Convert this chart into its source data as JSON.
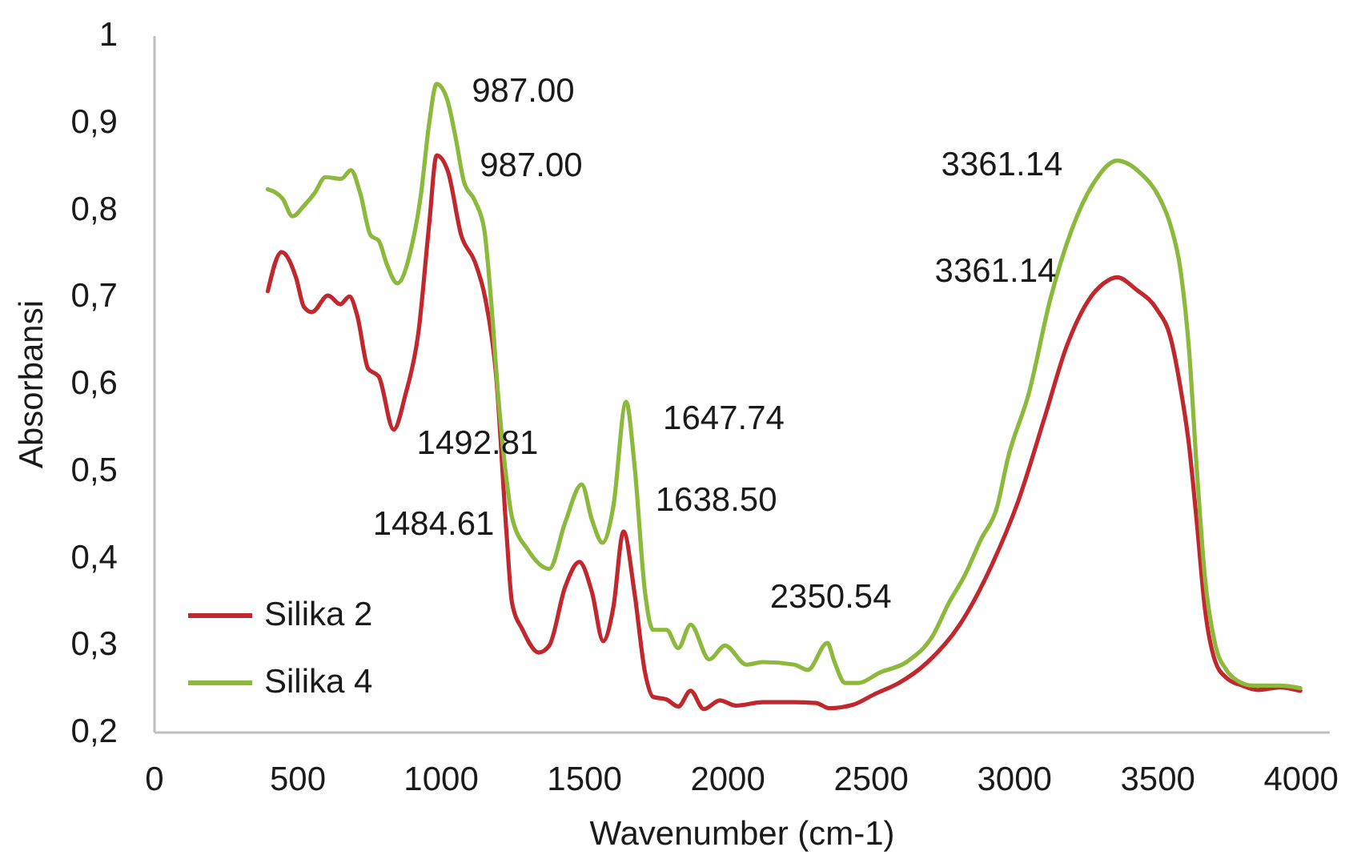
{
  "chart_data": {
    "type": "line",
    "xlabel": "Wavenumber (cm-1)",
    "ylabel": "Absorbansi",
    "xlim": [
      0,
      4100
    ],
    "xticks": [
      0,
      500,
      1000,
      1500,
      2000,
      2500,
      3000,
      3500,
      4000
    ],
    "ylim": [
      0.2,
      1
    ],
    "yticks": [
      {
        "value": 0.2,
        "label": "0,2"
      },
      {
        "value": 0.3,
        "label": "0,3"
      },
      {
        "value": 0.4,
        "label": "0,4"
      },
      {
        "value": 0.5,
        "label": "0,5"
      },
      {
        "value": 0.6,
        "label": "0,6"
      },
      {
        "value": 0.7,
        "label": "0,7"
      },
      {
        "value": 0.8,
        "label": "0,8"
      },
      {
        "value": 0.9,
        "label": "0,9"
      },
      1
    ],
    "grid": false,
    "legend": "bottom left",
    "line_style": "solid",
    "series": [
      {
        "name": "Silika 2",
        "color": "#c0282e",
        "x": [
          398,
          446,
          497,
          524,
          552,
          608,
          651,
          683,
          710,
          748,
          785,
          837,
          878,
          924,
          961,
          987,
          1026,
          1073,
          1120,
          1157,
          1194,
          1231,
          1250,
          1287,
          1343,
          1380,
          1435,
          1485,
          1529,
          1568,
          1603,
          1639,
          1677,
          1714,
          1742,
          1789,
          1830,
          1873,
          1919,
          1975,
          2031,
          2124,
          2235,
          2310,
          2356,
          2440,
          2514,
          2600,
          2700,
          2812,
          2923,
          3016,
          3109,
          3184,
          3258,
          3314,
          3361,
          3427,
          3500,
          3546,
          3583,
          3611,
          3639,
          3667,
          3704,
          3742,
          3797,
          3853,
          3928,
          4000
        ],
        "values": [
          0.706,
          0.751,
          0.721,
          0.688,
          0.682,
          0.701,
          0.691,
          0.7,
          0.678,
          0.617,
          0.608,
          0.547,
          0.587,
          0.66,
          0.783,
          0.862,
          0.844,
          0.77,
          0.74,
          0.697,
          0.611,
          0.427,
          0.348,
          0.317,
          0.291,
          0.299,
          0.366,
          0.395,
          0.36,
          0.304,
          0.342,
          0.43,
          0.36,
          0.268,
          0.24,
          0.237,
          0.229,
          0.247,
          0.226,
          0.236,
          0.23,
          0.234,
          0.234,
          0.233,
          0.227,
          0.231,
          0.243,
          0.256,
          0.28,
          0.323,
          0.391,
          0.465,
          0.562,
          0.642,
          0.694,
          0.715,
          0.722,
          0.708,
          0.685,
          0.654,
          0.593,
          0.531,
          0.44,
          0.342,
          0.28,
          0.262,
          0.253,
          0.248,
          0.251,
          0.247
        ]
      },
      {
        "name": "Silika 4",
        "color": "#8cb83c",
        "x": [
          398,
          450,
          484,
          524,
          562,
          599,
          654,
          688,
          720,
          757,
          785,
          813,
          850,
          896,
          933,
          961,
          987,
          1023,
          1054,
          1082,
          1120,
          1153,
          1175,
          1203,
          1231,
          1250,
          1305,
          1380,
          1435,
          1493,
          1529,
          1566,
          1603,
          1648,
          1677,
          1714,
          1742,
          1789,
          1830,
          1873,
          1938,
          1993,
          2068,
          2124,
          2235,
          2282,
          2350,
          2375,
          2412,
          2459,
          2533,
          2626,
          2719,
          2774,
          2830,
          2886,
          2942,
          2979,
          3054,
          3128,
          3203,
          3277,
          3361,
          3444,
          3509,
          3546,
          3583,
          3611,
          3639,
          3667,
          3704,
          3742,
          3779,
          3834,
          3928,
          4000
        ],
        "values": [
          0.823,
          0.812,
          0.792,
          0.804,
          0.819,
          0.837,
          0.835,
          0.845,
          0.819,
          0.77,
          0.764,
          0.737,
          0.715,
          0.752,
          0.819,
          0.899,
          0.944,
          0.927,
          0.881,
          0.832,
          0.81,
          0.777,
          0.703,
          0.581,
          0.489,
          0.446,
          0.409,
          0.387,
          0.44,
          0.484,
          0.443,
          0.417,
          0.458,
          0.579,
          0.507,
          0.36,
          0.317,
          0.317,
          0.296,
          0.323,
          0.283,
          0.299,
          0.277,
          0.28,
          0.277,
          0.271,
          0.302,
          0.28,
          0.256,
          0.256,
          0.268,
          0.28,
          0.311,
          0.348,
          0.38,
          0.421,
          0.458,
          0.513,
          0.59,
          0.697,
          0.777,
          0.829,
          0.856,
          0.841,
          0.813,
          0.783,
          0.728,
          0.642,
          0.501,
          0.378,
          0.299,
          0.271,
          0.259,
          0.253,
          0.253,
          0.25
        ]
      }
    ],
    "annotations": [
      {
        "text": "987.00",
        "x": 987,
        "y": 0.944
      },
      {
        "text": "987.00",
        "x": 987,
        "y": 0.862
      },
      {
        "text": "1492.81",
        "x": 1492.81,
        "y": 0.484
      },
      {
        "text": "1484.61",
        "x": 1484.61,
        "y": 0.395
      },
      {
        "text": "1647.74",
        "x": 1647.74,
        "y": 0.579
      },
      {
        "text": "1638.50",
        "x": 1638.5,
        "y": 0.43
      },
      {
        "text": "2350.54",
        "x": 2350.54,
        "y": 0.302
      },
      {
        "text": "3361.14",
        "x": 3361.14,
        "y": 0.856
      },
      {
        "text": "3361.14",
        "x": 3361.14,
        "y": 0.722
      }
    ]
  }
}
